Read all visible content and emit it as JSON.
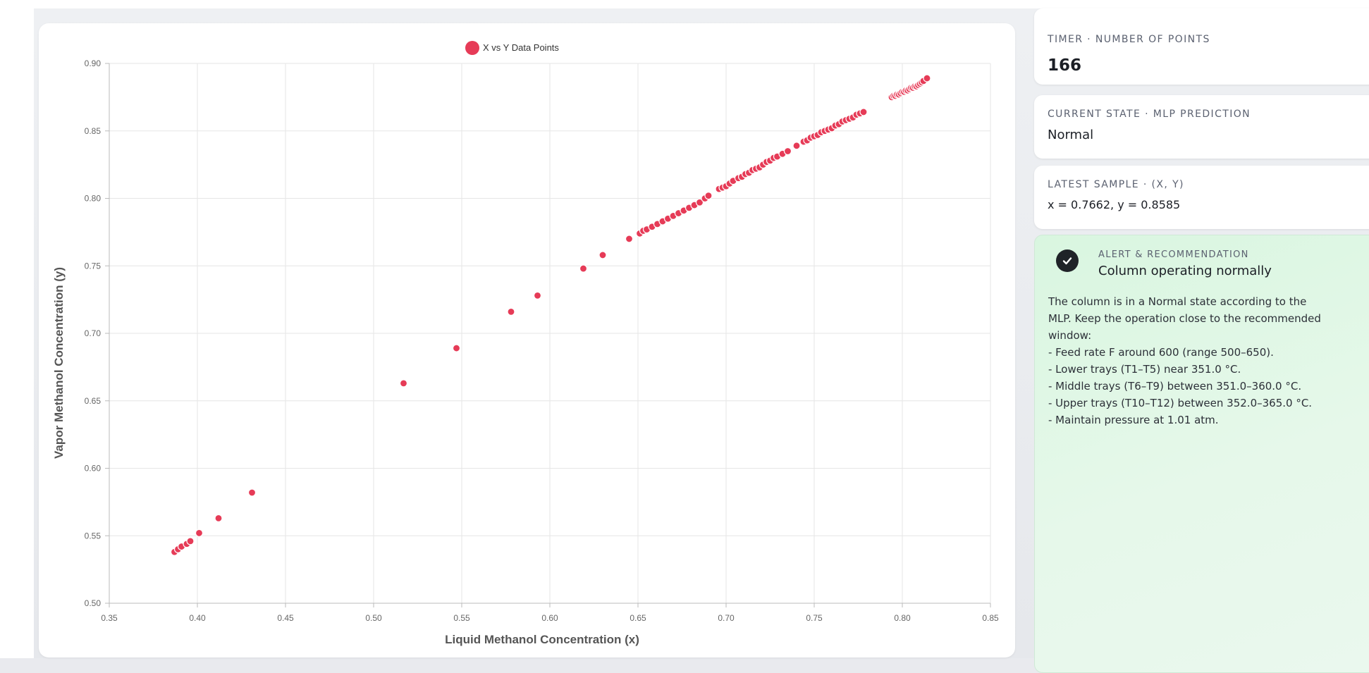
{
  "dashboard": {
    "timer": {
      "label": "TIMER · NUMBER OF POINTS",
      "value": "166"
    },
    "state": {
      "label": "CURRENT STATE · MLP PREDICTION",
      "value": "Normal"
    },
    "sample": {
      "label": "LATEST SAMPLE · (X, Y)",
      "value": "x = 0.7662, y = 0.8585"
    },
    "alert": {
      "kicker": "ALERT & RECOMMENDATION",
      "title": "Column operating normally",
      "icon": "check-circle-icon",
      "lines": [
        "The column is in a Normal state according to the",
        "MLP. Keep the operation close to the recommended",
        "window:",
        "- Feed rate F around 600 (range 500–650).",
        "- Lower trays (T1–T5) near 351.0 °C.",
        "- Middle trays (T6–T9) between 351.0–360.0 °C.",
        "- Upper trays (T10–T12) between 352.0–365.0 °C.",
        "- Maintain pressure at 1.01 atm."
      ]
    }
  },
  "chart_data": {
    "type": "scatter",
    "title": "",
    "xlabel": "Liquid Methanol Concentration (x)",
    "ylabel": "Vapor Methanol Concentration (y)",
    "xlim": [
      0.35,
      0.85
    ],
    "ylim": [
      0.5,
      0.9
    ],
    "xticks": [
      "0.35",
      "0.40",
      "0.45",
      "0.50",
      "0.55",
      "0.60",
      "0.65",
      "0.70",
      "0.75",
      "0.80",
      "0.85"
    ],
    "yticks": [
      "0.50",
      "0.55",
      "0.60",
      "0.65",
      "0.70",
      "0.75",
      "0.80",
      "0.85",
      "0.90"
    ],
    "grid": true,
    "legend": "top-center",
    "color": "#e63b57",
    "series": [
      {
        "name": "X vs Y Data Points",
        "points": [
          [
            0.387,
            0.538
          ],
          [
            0.389,
            0.54
          ],
          [
            0.391,
            0.542
          ],
          [
            0.394,
            0.544
          ],
          [
            0.396,
            0.546
          ],
          [
            0.401,
            0.552
          ],
          [
            0.412,
            0.563
          ],
          [
            0.431,
            0.582
          ],
          [
            0.517,
            0.663
          ],
          [
            0.547,
            0.689
          ],
          [
            0.578,
            0.716
          ],
          [
            0.593,
            0.728
          ],
          [
            0.619,
            0.748
          ],
          [
            0.63,
            0.758
          ],
          [
            0.645,
            0.77
          ],
          [
            0.651,
            0.774
          ],
          [
            0.653,
            0.776
          ],
          [
            0.655,
            0.777
          ],
          [
            0.658,
            0.779
          ],
          [
            0.661,
            0.781
          ],
          [
            0.664,
            0.783
          ],
          [
            0.667,
            0.785
          ],
          [
            0.67,
            0.787
          ],
          [
            0.673,
            0.789
          ],
          [
            0.676,
            0.791
          ],
          [
            0.679,
            0.793
          ],
          [
            0.682,
            0.795
          ],
          [
            0.685,
            0.797
          ],
          [
            0.688,
            0.8
          ],
          [
            0.69,
            0.802
          ],
          [
            0.696,
            0.807
          ],
          [
            0.698,
            0.808
          ],
          [
            0.7,
            0.809
          ],
          [
            0.702,
            0.811
          ],
          [
            0.704,
            0.813
          ],
          [
            0.707,
            0.815
          ],
          [
            0.709,
            0.816
          ],
          [
            0.711,
            0.818
          ],
          [
            0.713,
            0.819
          ],
          [
            0.715,
            0.821
          ],
          [
            0.717,
            0.822
          ],
          [
            0.719,
            0.823
          ],
          [
            0.721,
            0.825
          ],
          [
            0.723,
            0.827
          ],
          [
            0.725,
            0.828
          ],
          [
            0.727,
            0.83
          ],
          [
            0.729,
            0.831
          ],
          [
            0.732,
            0.833
          ],
          [
            0.735,
            0.835
          ],
          [
            0.74,
            0.839
          ],
          [
            0.744,
            0.842
          ],
          [
            0.746,
            0.843
          ],
          [
            0.748,
            0.845
          ],
          [
            0.75,
            0.846
          ],
          [
            0.752,
            0.847
          ],
          [
            0.754,
            0.849
          ],
          [
            0.756,
            0.85
          ],
          [
            0.758,
            0.851
          ],
          [
            0.76,
            0.852
          ],
          [
            0.762,
            0.854
          ],
          [
            0.764,
            0.855
          ],
          [
            0.766,
            0.857
          ],
          [
            0.768,
            0.858
          ],
          [
            0.77,
            0.859
          ],
          [
            0.772,
            0.86
          ],
          [
            0.774,
            0.862
          ],
          [
            0.776,
            0.863
          ],
          [
            0.778,
            0.864
          ],
          [
            0.794,
            0.875
          ],
          [
            0.795,
            0.876
          ],
          [
            0.796,
            0.876
          ],
          [
            0.797,
            0.877
          ],
          [
            0.798,
            0.877
          ],
          [
            0.799,
            0.878
          ],
          [
            0.8,
            0.879
          ],
          [
            0.801,
            0.879
          ],
          [
            0.802,
            0.88
          ],
          [
            0.803,
            0.88
          ],
          [
            0.804,
            0.881
          ],
          [
            0.805,
            0.882
          ],
          [
            0.806,
            0.882
          ],
          [
            0.807,
            0.883
          ],
          [
            0.808,
            0.883
          ],
          [
            0.809,
            0.884
          ],
          [
            0.81,
            0.885
          ],
          [
            0.811,
            0.886
          ],
          [
            0.812,
            0.887
          ],
          [
            0.814,
            0.889
          ]
        ]
      }
    ]
  }
}
